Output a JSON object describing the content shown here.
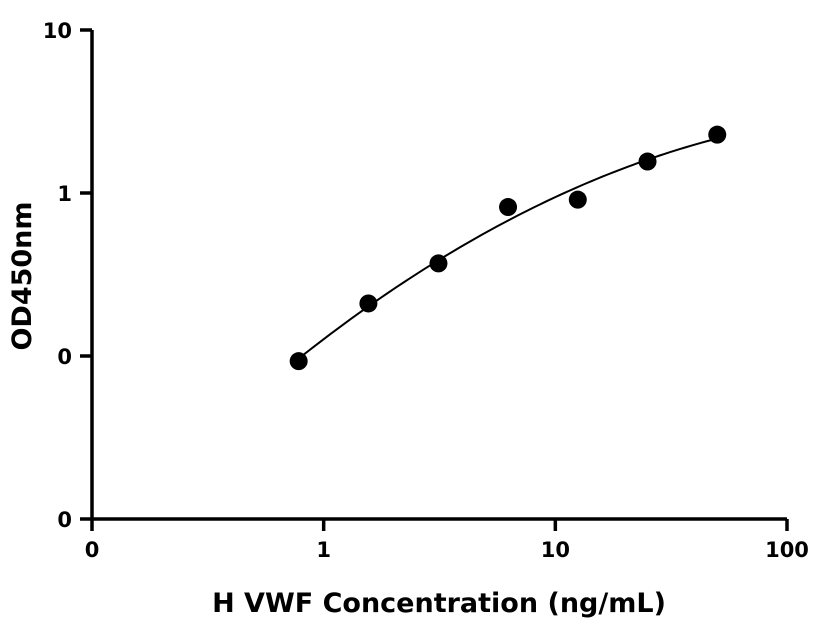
{
  "chart_data": {
    "type": "scatter",
    "title": "",
    "xlabel": "H VWF Concentration (ng/mL)",
    "ylabel": "OD450nm",
    "x_scale": "log",
    "y_scale": "log",
    "xlim": [
      0.1,
      100
    ],
    "ylim": [
      0.01,
      10
    ],
    "x_ticks": [
      {
        "value": 0.1,
        "label": "0"
      },
      {
        "value": 1,
        "label": "1"
      },
      {
        "value": 10,
        "label": "10"
      },
      {
        "value": 100,
        "label": "100"
      }
    ],
    "y_ticks": [
      {
        "value": 0.01,
        "label": "0"
      },
      {
        "value": 0.1,
        "label": "0"
      },
      {
        "value": 1,
        "label": "1"
      },
      {
        "value": 10,
        "label": "10"
      }
    ],
    "grid": false,
    "legend": "none",
    "series": [
      {
        "x": [
          0.78,
          1.56,
          3.13,
          6.25,
          12.5,
          25,
          50
        ],
        "y": [
          0.093,
          0.21,
          0.37,
          0.82,
          0.91,
          1.56,
          2.28
        ],
        "marker": "circle",
        "color": "#000000",
        "fit": "curve"
      }
    ]
  }
}
